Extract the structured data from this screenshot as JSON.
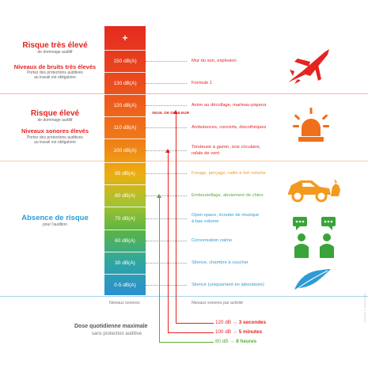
{
  "levels": [
    {
      "label": "+",
      "color": "#e52320"
    },
    {
      "label": "150 dB(A)",
      "activity": "Mur du son, explosion",
      "color": "#e52320"
    },
    {
      "label": "130 dB(A)",
      "activity": "Formule 1",
      "color": "#e52320"
    },
    {
      "label": "120 dB(A)",
      "activity": "Avion au décollage, marteau-piqueur",
      "color": "#e52320"
    },
    {
      "label": "110 dB(A)",
      "activity": "Ambulances, concerts, discothèques",
      "color": "#e52320"
    },
    {
      "label": "100 dB(A)",
      "activity": "Tondeuse à gazon, scie circulaire,",
      "activity2": "rafale de vent",
      "color": "#e52320"
    },
    {
      "label": "85 dB(A)",
      "activity": "Forage, perçage, radio à fort volume",
      "color": "#f39a1e"
    },
    {
      "label": "80 dB(A)",
      "activity": "Embouteillage, aboiement de chien",
      "color": "#5bab3a"
    },
    {
      "label": "70 dB(A)",
      "activity": "Open space, écouter de musique",
      "activity2": "à bas volume",
      "color": "#2f9bd6"
    },
    {
      "label": "60 dB(A)",
      "activity": "Conversation calme",
      "color": "#2f9bd6"
    },
    {
      "label": "30 dB(A)",
      "activity": "Silence, chambre à coucher",
      "color": "#2f9bd6"
    },
    {
      "label": "0-5 dB(A)",
      "activity": "Silence (uniquement en laboratoire)",
      "color": "#2f9bd6"
    }
  ],
  "left": {
    "very_high_title": "Risque très élevé",
    "very_high_sub": "de dommage auditif",
    "very_high_head2": "Niveaux de bruits très élevés",
    "very_high_note1": "Portez des protections auditives",
    "very_high_note2": "au travail est obligatoire",
    "high_title": "Risque élevé",
    "high_sub": "de dommage auditif",
    "high_head2": "Niveaux sonores élevés",
    "high_note1": "Portez des protections auditives",
    "high_note2": "au travail est obligatoire",
    "none_title": "Absence de risque",
    "none_sub": "pour l'audition"
  },
  "pain_threshold": "SEUIL DE DOULEUR",
  "footer": {
    "levels_label": "Niveaux sonores",
    "activity_label": "Niveaux sonores par activité"
  },
  "dose": {
    "title": "Dose quotidienne maximale",
    "subtitle": "sans protection auditive",
    "rows": [
      {
        "db": "120 dB",
        "arrow": "→",
        "duration": "3 secondes",
        "color": "#e52320"
      },
      {
        "db": "100 dB",
        "arrow": "→",
        "duration": "5 minutes",
        "color": "#e52320"
      },
      {
        "db": "80 dB",
        "arrow": "→",
        "duration": "8 heures",
        "color": "#5bab3a"
      }
    ]
  },
  "side_note": "Copyright © 2018 Amplifon"
}
